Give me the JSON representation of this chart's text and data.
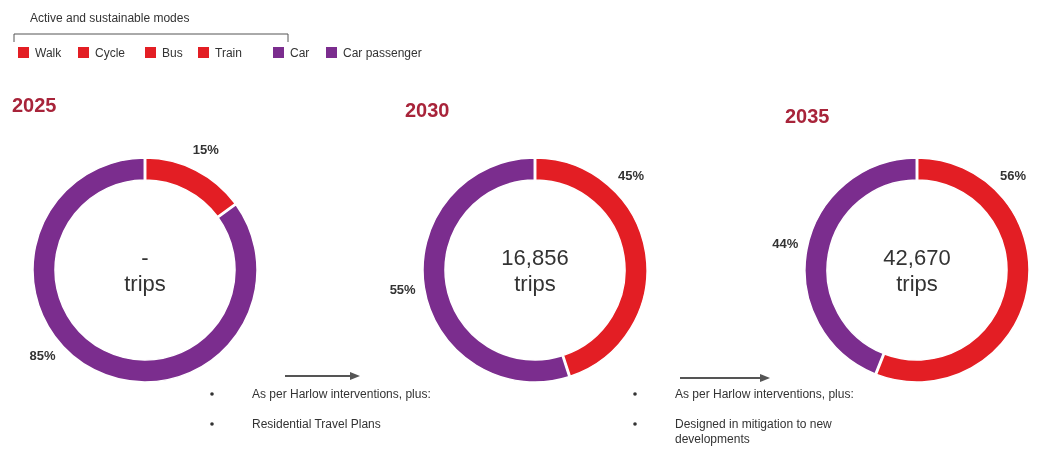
{
  "chart_data": [
    {
      "type": "other",
      "legend_title": "Active and sustainable modes",
      "categories": [
        "Walk",
        "Cycle",
        "Bus",
        "Train",
        "Car",
        "Car passenger"
      ],
      "colors": [
        "#e31e24",
        "#e31e24",
        "#e31e24",
        "#e31e24",
        "#7b2d8e",
        "#7b2d8e"
      ]
    },
    {
      "type": "donut",
      "title": "2025",
      "categories": [
        null,
        null
      ],
      "values": [
        15,
        85
      ],
      "colors": [
        "#e31e24",
        "#7b2d8e"
      ],
      "value_labels": [
        "15%",
        "85%"
      ],
      "annotations": [
        "-\ntrips"
      ]
    },
    {
      "type": "donut",
      "title": "2030",
      "categories": [
        null,
        null
      ],
      "values": [
        45,
        55
      ],
      "colors": [
        "#e31e24",
        "#7b2d8e"
      ],
      "value_labels": [
        "45%",
        "55%"
      ],
      "annotations": [
        "16,856\ntrips",
        "As per Harlow interventions, plus:",
        "Residential Travel Plans"
      ]
    },
    {
      "type": "donut",
      "title": "2035",
      "categories": [
        null,
        null
      ],
      "values": [
        56,
        44
      ],
      "colors": [
        "#e31e24",
        "#7b2d8e"
      ],
      "value_labels": [
        "56%",
        "44%"
      ],
      "annotations": [
        "42,670\ntrips",
        "As per Harlow interventions, plus:",
        "Designed in mitigation to new\ndevelopments"
      ]
    }
  ]
}
